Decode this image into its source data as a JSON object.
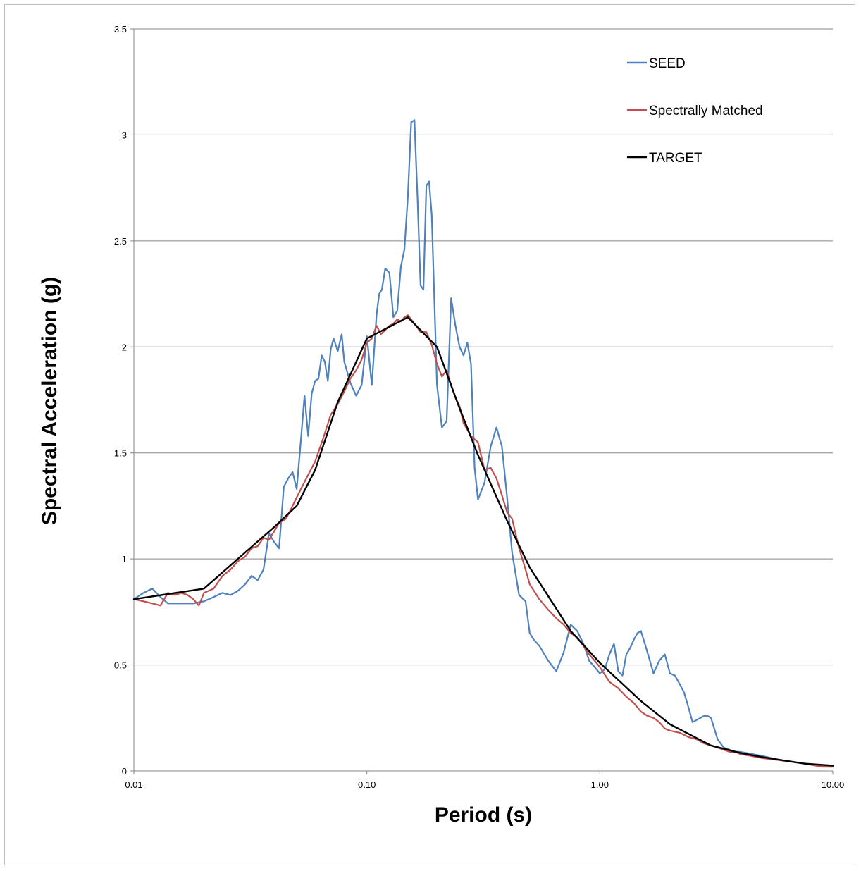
{
  "chart_data": {
    "type": "line",
    "xlabel": "Period (s)",
    "ylabel": "Spectral Acceleration (g)",
    "x_scale": "log",
    "xlim": [
      0.01,
      10
    ],
    "ylim": [
      0,
      3.5
    ],
    "x_ticks": [
      {
        "value": 0.01,
        "label": "0.01"
      },
      {
        "value": 0.1,
        "label": "0.10"
      },
      {
        "value": 1,
        "label": "1.00"
      },
      {
        "value": 10,
        "label": "10.00"
      }
    ],
    "y_ticks": [
      {
        "value": 0,
        "label": "0"
      },
      {
        "value": 0.5,
        "label": "0.5"
      },
      {
        "value": 1,
        "label": "1"
      },
      {
        "value": 1.5,
        "label": "1.5"
      },
      {
        "value": 2,
        "label": "2"
      },
      {
        "value": 2.5,
        "label": "2.5"
      },
      {
        "value": 3,
        "label": "3"
      },
      {
        "value": 3.5,
        "label": "3.5"
      }
    ],
    "grid": "horizontal",
    "legend_position": "top-right",
    "series": [
      {
        "name": "SEED",
        "color": "#4f81bd",
        "x": [
          0.01,
          0.011,
          0.012,
          0.013,
          0.014,
          0.016,
          0.018,
          0.02,
          0.022,
          0.024,
          0.026,
          0.028,
          0.03,
          0.032,
          0.034,
          0.036,
          0.038,
          0.04,
          0.042,
          0.044,
          0.046,
          0.048,
          0.05,
          0.052,
          0.054,
          0.056,
          0.058,
          0.06,
          0.062,
          0.064,
          0.066,
          0.068,
          0.07,
          0.072,
          0.075,
          0.078,
          0.08,
          0.085,
          0.09,
          0.095,
          0.1,
          0.105,
          0.11,
          0.113,
          0.116,
          0.12,
          0.125,
          0.13,
          0.135,
          0.14,
          0.145,
          0.15,
          0.155,
          0.16,
          0.165,
          0.17,
          0.175,
          0.18,
          0.185,
          0.19,
          0.2,
          0.21,
          0.22,
          0.23,
          0.24,
          0.25,
          0.26,
          0.27,
          0.28,
          0.29,
          0.3,
          0.32,
          0.34,
          0.36,
          0.38,
          0.4,
          0.42,
          0.45,
          0.48,
          0.5,
          0.52,
          0.55,
          0.6,
          0.65,
          0.7,
          0.75,
          0.8,
          0.85,
          0.9,
          0.95,
          1.0,
          1.05,
          1.1,
          1.15,
          1.2,
          1.25,
          1.3,
          1.35,
          1.4,
          1.45,
          1.5,
          1.55,
          1.6,
          1.7,
          1.8,
          1.9,
          2.0,
          2.1,
          2.2,
          2.3,
          2.4,
          2.5,
          2.6,
          2.7,
          2.8,
          2.9,
          3.0,
          3.2,
          3.4,
          3.6,
          3.8,
          4.0,
          4.5,
          5.0,
          5.5,
          6.0,
          7.0,
          8.0,
          9.0,
          10.0
        ],
        "y": [
          0.81,
          0.84,
          0.86,
          0.82,
          0.79,
          0.79,
          0.79,
          0.8,
          0.82,
          0.84,
          0.83,
          0.85,
          0.88,
          0.92,
          0.9,
          0.95,
          1.12,
          1.08,
          1.05,
          1.34,
          1.38,
          1.41,
          1.33,
          1.55,
          1.77,
          1.58,
          1.78,
          1.84,
          1.85,
          1.96,
          1.93,
          1.84,
          1.99,
          2.04,
          1.98,
          2.06,
          1.93,
          1.83,
          1.77,
          1.82,
          2.05,
          1.82,
          2.15,
          2.25,
          2.27,
          2.37,
          2.35,
          2.14,
          2.17,
          2.38,
          2.46,
          2.71,
          3.06,
          3.07,
          2.7,
          2.29,
          2.27,
          2.76,
          2.78,
          2.62,
          1.82,
          1.62,
          1.65,
          2.23,
          2.1,
          2.0,
          1.96,
          2.02,
          1.92,
          1.43,
          1.28,
          1.36,
          1.53,
          1.62,
          1.53,
          1.29,
          1.03,
          0.83,
          0.8,
          0.65,
          0.62,
          0.59,
          0.52,
          0.47,
          0.56,
          0.69,
          0.66,
          0.6,
          0.52,
          0.49,
          0.46,
          0.48,
          0.55,
          0.6,
          0.47,
          0.45,
          0.55,
          0.58,
          0.62,
          0.65,
          0.66,
          0.61,
          0.56,
          0.46,
          0.52,
          0.55,
          0.46,
          0.45,
          0.41,
          0.37,
          0.3,
          0.23,
          0.24,
          0.25,
          0.26,
          0.26,
          0.25,
          0.15,
          0.11,
          0.1,
          0.09,
          0.09,
          0.08,
          0.07,
          0.06,
          0.05,
          0.04,
          0.03,
          0.02,
          0.02
        ]
      },
      {
        "name": "Spectrally Matched",
        "color": "#c0504d",
        "x": [
          0.01,
          0.011,
          0.012,
          0.013,
          0.014,
          0.015,
          0.016,
          0.017,
          0.018,
          0.019,
          0.02,
          0.021,
          0.022,
          0.024,
          0.026,
          0.028,
          0.03,
          0.032,
          0.034,
          0.036,
          0.038,
          0.04,
          0.042,
          0.045,
          0.048,
          0.05,
          0.055,
          0.06,
          0.065,
          0.07,
          0.075,
          0.08,
          0.085,
          0.09,
          0.095,
          0.1,
          0.105,
          0.11,
          0.115,
          0.12,
          0.125,
          0.13,
          0.135,
          0.14,
          0.145,
          0.15,
          0.16,
          0.17,
          0.18,
          0.19,
          0.2,
          0.21,
          0.22,
          0.23,
          0.24,
          0.25,
          0.26,
          0.28,
          0.3,
          0.32,
          0.34,
          0.36,
          0.38,
          0.4,
          0.42,
          0.45,
          0.48,
          0.5,
          0.55,
          0.6,
          0.65,
          0.7,
          0.75,
          0.8,
          0.85,
          0.9,
          0.95,
          1.0,
          1.1,
          1.2,
          1.3,
          1.4,
          1.5,
          1.6,
          1.7,
          1.8,
          1.9,
          2.0,
          2.2,
          2.4,
          2.6,
          2.8,
          3.0,
          3.2,
          3.4,
          3.6,
          3.8,
          4.0,
          4.5,
          5.0,
          6.0,
          7.0,
          8.0,
          9.0,
          10.0
        ],
        "y": [
          0.81,
          0.8,
          0.79,
          0.78,
          0.84,
          0.83,
          0.84,
          0.83,
          0.81,
          0.78,
          0.84,
          0.85,
          0.86,
          0.92,
          0.95,
          0.99,
          1.01,
          1.05,
          1.06,
          1.1,
          1.09,
          1.13,
          1.17,
          1.19,
          1.25,
          1.29,
          1.38,
          1.46,
          1.57,
          1.68,
          1.73,
          1.79,
          1.85,
          1.89,
          1.94,
          2.02,
          2.04,
          2.1,
          2.06,
          2.08,
          2.1,
          2.11,
          2.13,
          2.12,
          2.14,
          2.15,
          2.11,
          2.07,
          2.07,
          2.01,
          1.92,
          1.86,
          1.89,
          1.82,
          1.76,
          1.72,
          1.64,
          1.58,
          1.55,
          1.42,
          1.43,
          1.38,
          1.3,
          1.22,
          1.19,
          1.05,
          0.95,
          0.88,
          0.81,
          0.76,
          0.72,
          0.69,
          0.65,
          0.63,
          0.59,
          0.55,
          0.52,
          0.49,
          0.42,
          0.39,
          0.35,
          0.32,
          0.28,
          0.26,
          0.25,
          0.23,
          0.2,
          0.19,
          0.18,
          0.16,
          0.15,
          0.13,
          0.12,
          0.11,
          0.1,
          0.09,
          0.09,
          0.08,
          0.07,
          0.06,
          0.05,
          0.04,
          0.03,
          0.02,
          0.02
        ]
      },
      {
        "name": "TARGET",
        "color": "#000000",
        "x": [
          0.01,
          0.02,
          0.03,
          0.04,
          0.05,
          0.06,
          0.075,
          0.1,
          0.15,
          0.2,
          0.25,
          0.3,
          0.4,
          0.5,
          0.75,
          1.0,
          1.5,
          2.0,
          3.0,
          4.0,
          5.0,
          7.5,
          10.0
        ],
        "y": [
          0.81,
          0.86,
          1.03,
          1.15,
          1.25,
          1.42,
          1.74,
          2.04,
          2.14,
          2.0,
          1.71,
          1.49,
          1.18,
          0.96,
          0.66,
          0.51,
          0.33,
          0.22,
          0.12,
          0.085,
          0.065,
          0.035,
          0.025
        ]
      }
    ]
  }
}
